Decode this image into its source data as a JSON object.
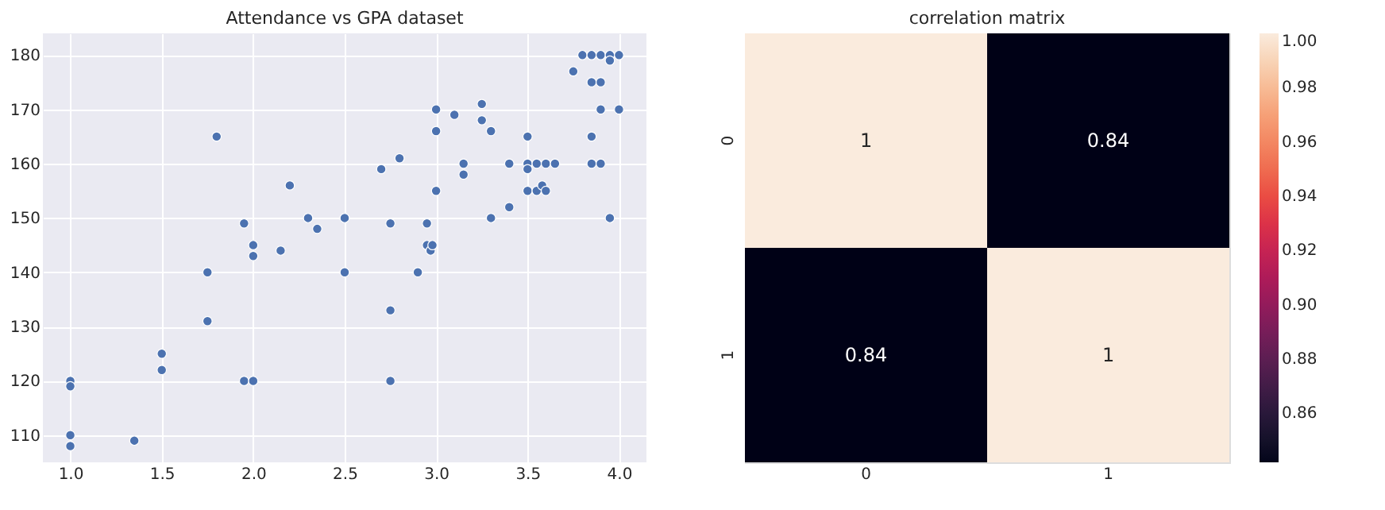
{
  "chart_data": [
    {
      "type": "scatter",
      "title": "Attendance vs GPA dataset",
      "marker": "circle",
      "grid": true,
      "xlim": [
        0.85,
        4.15
      ],
      "xticks": [
        {
          "value": 1,
          "label": "1.0"
        },
        {
          "value": 1.5,
          "label": "1.5"
        },
        {
          "value": 2,
          "label": "2.0"
        },
        {
          "value": 2.5,
          "label": "2.5"
        },
        {
          "value": 3,
          "label": "3.0"
        },
        {
          "value": 3.5,
          "label": "3.5"
        },
        {
          "value": 4,
          "label": "4.0"
        }
      ],
      "ylim": [
        105,
        184
      ],
      "yticks": [
        110,
        120,
        130,
        140,
        150,
        160,
        170,
        180
      ],
      "series": [
        {
          "color": "#4c72b0",
          "x": [
            1.0,
            1.0,
            1.0,
            1.0,
            1.35,
            1.5,
            1.5,
            1.75,
            1.75,
            1.8,
            1.95,
            2.0,
            2.0,
            1.95,
            2.0,
            2.2,
            2.15,
            2.3,
            2.35,
            2.5,
            2.5,
            2.7,
            2.8,
            2.75,
            2.75,
            2.75,
            2.95,
            2.95,
            2.97,
            2.98,
            2.9,
            3.0,
            3.0,
            3.0,
            3.1,
            3.15,
            3.15,
            3.25,
            3.25,
            3.3,
            3.3,
            3.4,
            3.4,
            3.5,
            3.5,
            3.5,
            3.5,
            3.55,
            3.55,
            3.58,
            3.6,
            3.6,
            3.65,
            3.75,
            3.8,
            3.85,
            3.9,
            3.95,
            3.95,
            4.0,
            3.85,
            3.9,
            3.9,
            4.0,
            3.85,
            3.85,
            3.9,
            3.95
          ],
          "values": [
            120,
            119,
            110,
            108,
            109,
            125,
            122,
            140,
            131,
            165,
            149,
            145,
            143,
            120,
            120,
            156,
            144,
            150,
            148,
            150,
            140,
            159,
            161,
            149,
            133,
            120,
            149,
            145,
            144,
            145,
            140,
            170,
            166,
            155,
            169,
            160,
            158,
            171,
            168,
            166,
            150,
            160,
            152,
            165,
            160,
            159,
            155,
            160,
            155,
            156,
            160,
            155,
            160,
            177,
            180,
            180,
            180,
            180,
            179,
            180,
            175,
            175,
            170,
            170,
            165,
            160,
            160,
            150
          ]
        }
      ]
    },
    {
      "type": "heatmap",
      "title": "correlation matrix",
      "categories": [
        "0",
        "1"
      ],
      "y_categories": [
        "0",
        "1"
      ],
      "cells": [
        [
          1,
          0.84
        ],
        [
          0.84,
          1
        ]
      ],
      "data_labels": true,
      "clim": [
        0.842,
        1.0
      ],
      "cticks": [
        {
          "value": 0.86,
          "label": "0.86"
        },
        {
          "value": 0.88,
          "label": "0.88"
        },
        {
          "value": 0.9,
          "label": "0.90"
        },
        {
          "value": 0.92,
          "label": "0.92"
        },
        {
          "value": 0.94,
          "label": "0.94"
        },
        {
          "value": 0.96,
          "label": "0.96"
        },
        {
          "value": 0.98,
          "label": "0.98"
        },
        {
          "value": 1.0,
          "label": "1.00"
        }
      ]
    }
  ]
}
